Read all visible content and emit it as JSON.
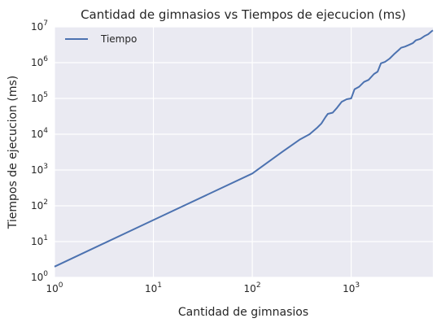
{
  "chart_data": {
    "type": "line",
    "title": "Cantidad de gimnasios vs Tiempos de ejecucion (ms)",
    "xlabel": "Cantidad de gimnasios",
    "ylabel": "Tiempos de ejecucion (ms)",
    "xscale": "log",
    "yscale": "log",
    "xlim": [
      1,
      6700
    ],
    "ylim": [
      1,
      10000000
    ],
    "grid": true,
    "legend": {
      "placement": "top-left",
      "entries": [
        "Tiempo"
      ]
    },
    "x_ticks": [
      {
        "base": "10",
        "exp": "0"
      },
      {
        "base": "10",
        "exp": "1"
      },
      {
        "base": "10",
        "exp": "2"
      },
      {
        "base": "10",
        "exp": "3"
      }
    ],
    "y_ticks": [
      {
        "base": "10",
        "exp": "0"
      },
      {
        "base": "10",
        "exp": "1"
      },
      {
        "base": "10",
        "exp": "2"
      },
      {
        "base": "10",
        "exp": "3"
      },
      {
        "base": "10",
        "exp": "4"
      },
      {
        "base": "10",
        "exp": "5"
      },
      {
        "base": "10",
        "exp": "6"
      },
      {
        "base": "10",
        "exp": "7"
      }
    ],
    "series": [
      {
        "name": "Tiempo",
        "color": "#4c72b0",
        "points": [
          [
            1,
            2
          ],
          [
            10,
            40
          ],
          [
            100,
            800
          ],
          [
            150,
            1800
          ],
          [
            200,
            3200
          ],
          [
            300,
            7000
          ],
          [
            380,
            10000
          ],
          [
            450,
            15000
          ],
          [
            500,
            20000
          ],
          [
            550,
            30000
          ],
          [
            580,
            37000
          ],
          [
            650,
            40000
          ],
          [
            720,
            55000
          ],
          [
            800,
            80000
          ],
          [
            900,
            95000
          ],
          [
            1000,
            100000
          ],
          [
            1080,
            180000
          ],
          [
            1200,
            210000
          ],
          [
            1350,
            290000
          ],
          [
            1500,
            330000
          ],
          [
            1700,
            480000
          ],
          [
            1850,
            560000
          ],
          [
            2000,
            960000
          ],
          [
            2200,
            1050000
          ],
          [
            2450,
            1300000
          ],
          [
            2700,
            1700000
          ],
          [
            3000,
            2200000
          ],
          [
            3200,
            2600000
          ],
          [
            3500,
            2800000
          ],
          [
            3800,
            3100000
          ],
          [
            4200,
            3500000
          ],
          [
            4500,
            4200000
          ],
          [
            5000,
            4600000
          ],
          [
            5500,
            5500000
          ],
          [
            6000,
            6200000
          ],
          [
            6500,
            7500000
          ],
          [
            6700,
            8000000
          ]
        ]
      }
    ]
  }
}
